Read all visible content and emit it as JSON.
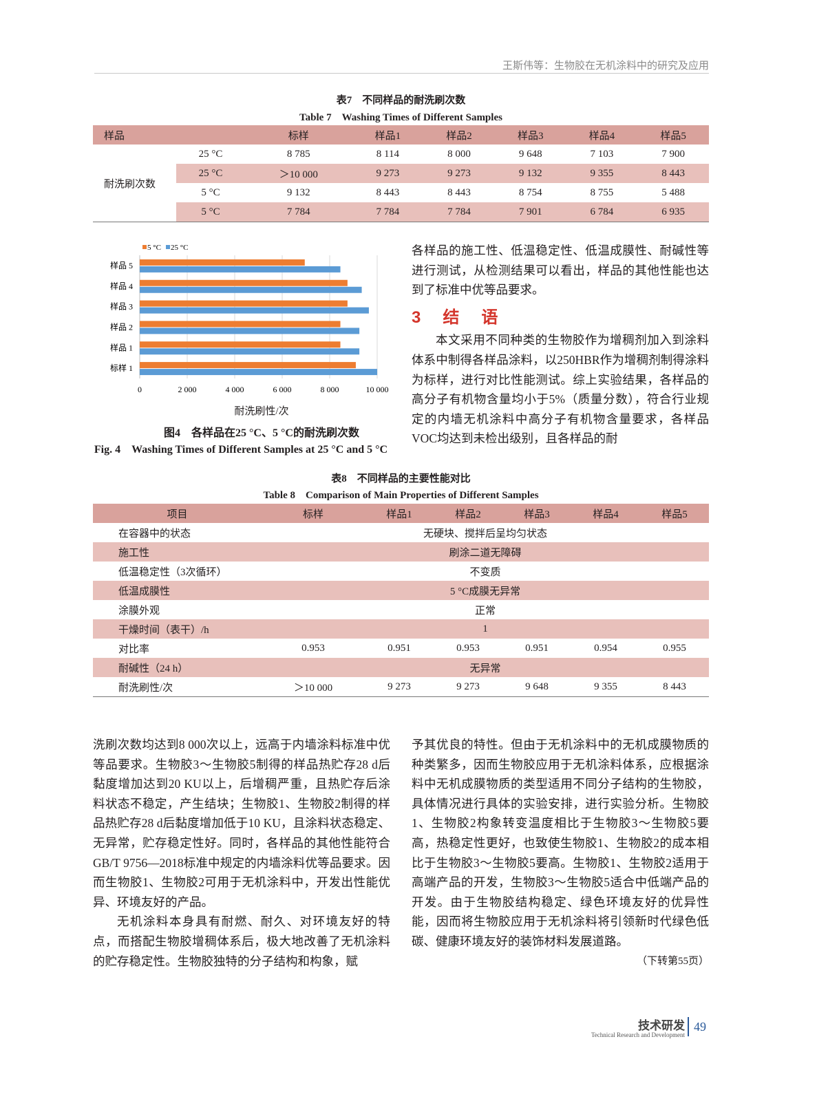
{
  "running_header": "王斯伟等：生物胶在无机涂料中的研究及应用",
  "table7": {
    "title_cn": "表7　不同样品的耐洗刷次数",
    "title_en": "Table 7　Washing Times of Different Samples",
    "headers": [
      "样品",
      "",
      "标样",
      "样品1",
      "样品2",
      "样品3",
      "样品4",
      "样品5"
    ],
    "row_label": "耐洗刷次数",
    "rows": [
      {
        "temp": "25 °C",
        "values": [
          "8 785",
          "8 114",
          "8 000",
          "9 648",
          "7 103",
          "7 900"
        ]
      },
      {
        "temp": "25 °C",
        "values": [
          "＞10 000",
          "9 273",
          "9 273",
          "9 132",
          "9 355",
          "8 443"
        ]
      },
      {
        "temp": "5 °C",
        "values": [
          "9 132",
          "8 443",
          "8 443",
          "8 754",
          "8 755",
          "5 488"
        ]
      },
      {
        "temp": "5 °C",
        "values": [
          "7 784",
          "7 784",
          "7 784",
          "7 901",
          "6 784",
          "6 935"
        ]
      }
    ]
  },
  "chart_data": {
    "type": "bar",
    "orientation": "horizontal",
    "categories": [
      "标样 1",
      "样品 1",
      "样品 2",
      "样品 3",
      "样品 4",
      "样品 5"
    ],
    "series": [
      {
        "name": "5 °C",
        "color": "#ed7d31",
        "values": [
          9100,
          8450,
          8450,
          8750,
          8750,
          6950
        ]
      },
      {
        "name": "25 °C",
        "color": "#5b9bd5",
        "values": [
          10000,
          9250,
          9250,
          9650,
          9350,
          8450
        ]
      }
    ],
    "xlabel": "耐洗刷性/次",
    "xlim": [
      0,
      10000
    ],
    "xticks": [
      "0",
      "2 000",
      "4 000",
      "6 000",
      "8 000",
      "10 000"
    ],
    "grid": true,
    "legend": "top-left"
  },
  "figure4": {
    "caption_cn": "图4　各样品在25 °C、5 °C的耐洗刷次数",
    "caption_en": "Fig. 4　Washing Times of Different Samples at 25 °C and 5 °C"
  },
  "right_text_1": "各样品的施工性、低温稳定性、低温成膜性、耐碱性等进行测试，从检测结果可以看出，样品的其他性能也达到了标准中优等品要求。",
  "section3_title": "3　结　语",
  "section3_para": "本文采用不同种类的生物胶作为增稠剂加入到涂料体系中制得各样品涂料，以250HBR作为增稠剂制得涂料为标样，进行对比性能测试。综上实验结果，各样品的高分子有机物含量均小于5%（质量分数），符合行业规定的内墙无机涂料中高分子有机物含量要求，各样品VOC均达到未检出级别，且各样品的耐",
  "table8": {
    "title_cn": "表8　不同样品的主要性能对比",
    "title_en": "Table 8　Comparison of Main Properties of Different Samples",
    "headers": [
      "项目",
      "标样",
      "样品1",
      "样品2",
      "样品3",
      "样品4",
      "样品5"
    ],
    "rows": [
      {
        "item": "在容器中的状态",
        "merged": "无硬块、搅拌后呈均匀状态"
      },
      {
        "item": "施工性",
        "merged": "刷涂二道无障碍"
      },
      {
        "item": "低温稳定性（3次循环）",
        "merged": "不变质"
      },
      {
        "item": "低温成膜性",
        "merged": "5 °C成膜无异常"
      },
      {
        "item": "涂膜外观",
        "merged": "正常"
      },
      {
        "item": "干燥时间（表干）/h",
        "merged": "1"
      },
      {
        "item": "对比率",
        "values": [
          "0.953",
          "0.951",
          "0.953",
          "0.951",
          "0.954",
          "0.955"
        ]
      },
      {
        "item": "耐碱性（24 h）",
        "merged": "无异常"
      },
      {
        "item": "耐洗刷性/次",
        "values": [
          "＞10 000",
          "9 273",
          "9 273",
          "9 648",
          "9 355",
          "8 443"
        ]
      }
    ]
  },
  "left_col": {
    "para1": "洗刷次数均达到8 000次以上，远高于内墙涂料标准中优等品要求。生物胶3～生物胶5制得的样品热贮存28 d后黏度增加达到20 KU以上，后增稠严重，且热贮存后涂料状态不稳定，产生结块；生物胶1、生物胶2制得的样品热贮存28 d后黏度增加低于10 KU，且涂料状态稳定、无异常，贮存稳定性好。同时，各样品的其他性能符合GB/T 9756—2018标准中规定的内墙涂料优等品要求。因而生物胶1、生物胶2可用于无机涂料中，开发出性能优异、环境友好的产品。",
    "para2": "无机涂料本身具有耐燃、耐久、对环境友好的特点，而搭配生物胶增稠体系后，极大地改善了无机涂料的贮存稳定性。生物胶独特的分子结构和构象，赋"
  },
  "right_col": {
    "para1": "予其优良的特性。但由于无机涂料中的无机成膜物质的种类繁多，因而生物胶应用于无机涂料体系，应根据涂料中无机成膜物质的类型适用不同分子结构的生物胶，具体情况进行具体的实验安排，进行实验分析。生物胶1、生物胶2构象转变温度相比于生物胶3～生物胶5要高，热稳定性更好，也致使生物胶1、生物胶2的成本相比于生物胶3～生物胶5要高。生物胶1、生物胶2适用于高端产品的开发，生物胶3～生物胶5适合中低端产品的开发。由于生物胶结构稳定、绿色环境友好的优异性能，因而将生物胶应用于无机涂料将引领新时代绿色低碳、健康环境友好的装饰材料发展道路。",
    "continued": "（下转第55页）"
  },
  "footer": {
    "section_cn": "技术研发",
    "section_en": "Technical Research and Development",
    "page": "49"
  }
}
